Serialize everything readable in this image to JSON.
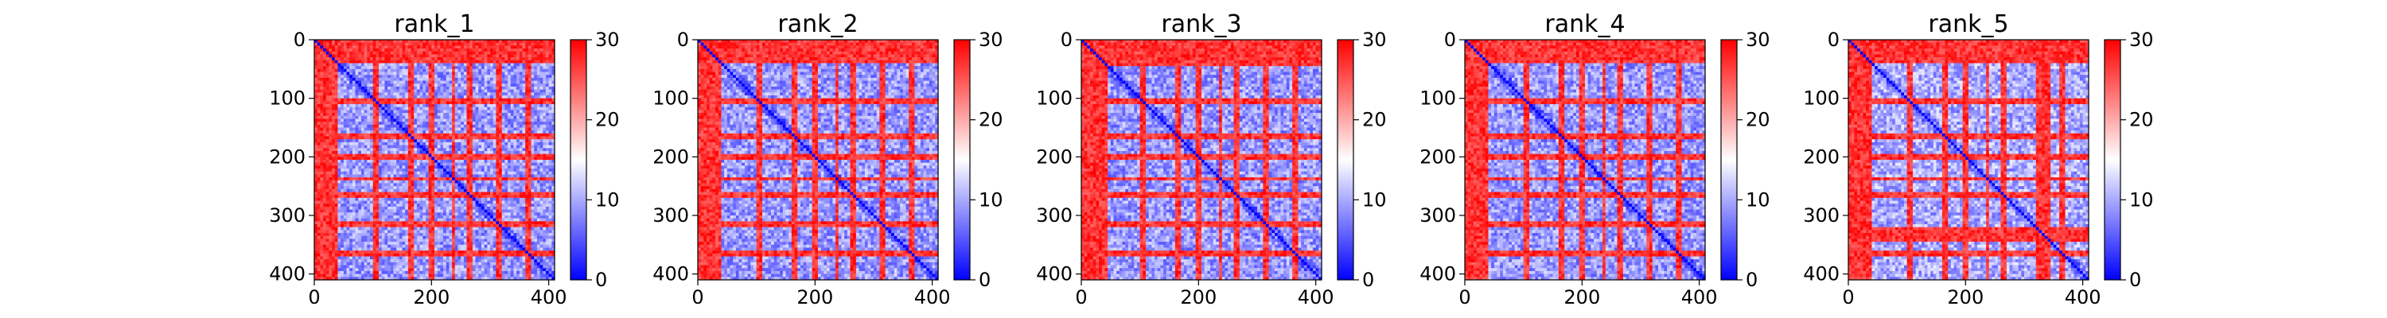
{
  "chart_data": [
    {
      "type": "heatmap",
      "title": "rank_1",
      "xlabel": "",
      "ylabel": "",
      "xlim": [
        0,
        410
      ],
      "ylim": [
        410,
        0
      ],
      "x_ticks": [
        0,
        200,
        400
      ],
      "y_ticks": [
        0,
        100,
        200,
        300,
        400
      ],
      "colorbar": {
        "min": 0,
        "max": 30,
        "ticks": [
          0,
          10,
          20,
          30
        ],
        "colormap": [
          "#0000ff",
          "#ffffff",
          "#ff0000"
        ]
      },
      "high_bands": [
        [
          0,
          40
        ],
        [
          100,
          112
        ],
        [
          160,
          172
        ],
        [
          196,
          206
        ],
        [
          234,
          242
        ],
        [
          262,
          272
        ],
        [
          308,
          318
        ],
        [
          362,
          372
        ]
      ],
      "diagonal_value": 0,
      "background_value": 5,
      "edge_value": 30
    },
    {
      "type": "heatmap",
      "title": "rank_2",
      "xlabel": "",
      "ylabel": "",
      "xlim": [
        0,
        410
      ],
      "ylim": [
        410,
        0
      ],
      "x_ticks": [
        0,
        200,
        400
      ],
      "y_ticks": [
        0,
        100,
        200,
        300,
        400
      ],
      "colorbar": {
        "min": 0,
        "max": 30,
        "ticks": [
          0,
          10,
          20,
          30
        ],
        "colormap": [
          "#0000ff",
          "#ffffff",
          "#ff0000"
        ]
      },
      "high_bands": [
        [
          0,
          40
        ],
        [
          100,
          112
        ],
        [
          160,
          172
        ],
        [
          196,
          206
        ],
        [
          234,
          242
        ],
        [
          262,
          272
        ],
        [
          308,
          318
        ],
        [
          362,
          372
        ]
      ],
      "diagonal_value": 0,
      "background_value": 5,
      "edge_value": 30
    },
    {
      "type": "heatmap",
      "title": "rank_3",
      "xlabel": "",
      "ylabel": "",
      "xlim": [
        0,
        410
      ],
      "ylim": [
        410,
        0
      ],
      "x_ticks": [
        0,
        200,
        400
      ],
      "y_ticks": [
        0,
        100,
        200,
        300,
        400
      ],
      "colorbar": {
        "min": 0,
        "max": 30,
        "ticks": [
          0,
          10,
          20,
          30
        ],
        "colormap": [
          "#0000ff",
          "#ffffff",
          "#ff0000"
        ]
      },
      "high_bands": [
        [
          0,
          45
        ],
        [
          100,
          112
        ],
        [
          160,
          172
        ],
        [
          196,
          206
        ],
        [
          234,
          242
        ],
        [
          262,
          272
        ],
        [
          308,
          318
        ],
        [
          362,
          372
        ]
      ],
      "diagonal_value": 0,
      "background_value": 5,
      "edge_value": 30
    },
    {
      "type": "heatmap",
      "title": "rank_4",
      "xlabel": "",
      "ylabel": "",
      "xlim": [
        0,
        410
      ],
      "ylim": [
        410,
        0
      ],
      "x_ticks": [
        0,
        200,
        400
      ],
      "y_ticks": [
        0,
        100,
        200,
        300,
        400
      ],
      "colorbar": {
        "min": 0,
        "max": 30,
        "ticks": [
          0,
          10,
          20,
          30
        ],
        "colormap": [
          "#0000ff",
          "#ffffff",
          "#ff0000"
        ]
      },
      "high_bands": [
        [
          0,
          40
        ],
        [
          100,
          112
        ],
        [
          160,
          172
        ],
        [
          196,
          206
        ],
        [
          234,
          242
        ],
        [
          262,
          272
        ],
        [
          308,
          318
        ],
        [
          362,
          372
        ]
      ],
      "diagonal_value": 0,
      "background_value": 5,
      "edge_value": 30
    },
    {
      "type": "heatmap",
      "title": "rank_5",
      "xlabel": "",
      "ylabel": "",
      "xlim": [
        0,
        410
      ],
      "ylim": [
        410,
        0
      ],
      "x_ticks": [
        0,
        200,
        400
      ],
      "y_ticks": [
        0,
        100,
        200,
        300,
        400
      ],
      "colorbar": {
        "min": 0,
        "max": 30,
        "ticks": [
          0,
          10,
          20,
          30
        ],
        "colormap": [
          "#0000ff",
          "#ffffff",
          "#ff0000"
        ]
      },
      "high_bands": [
        [
          0,
          40
        ],
        [
          100,
          112
        ],
        [
          160,
          172
        ],
        [
          196,
          206
        ],
        [
          234,
          242
        ],
        [
          262,
          272
        ],
        [
          320,
          346
        ],
        [
          362,
          372
        ]
      ],
      "diagonal_value": 0,
      "background_value": 6,
      "edge_value": 30
    }
  ]
}
